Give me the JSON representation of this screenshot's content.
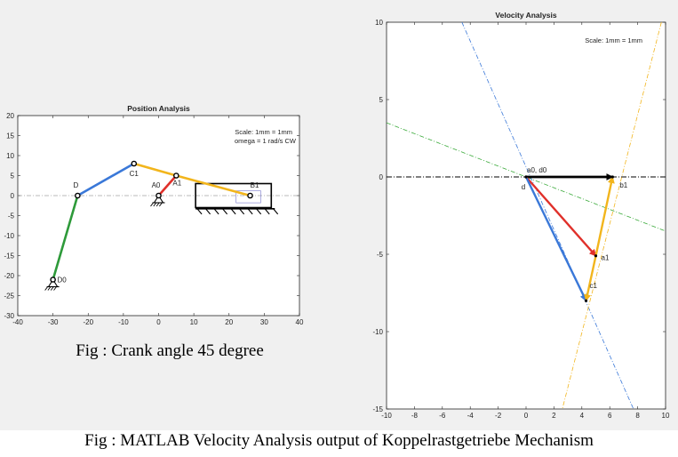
{
  "captions": {
    "left": "Fig : Crank angle 45 degree",
    "main": "Fig : MATLAB Velocity Analysis output of  Koppelrastgetriebe Mechanism"
  },
  "colors": {
    "blue": "#3a78d8",
    "green": "#2e9a3a",
    "yellow": "#f2b51c",
    "red": "#e0302a",
    "black": "#000000",
    "green_dashed": "#3aaa3a",
    "orange_dashed": "#f2b51c",
    "blue_dashed": "#3a78d8"
  },
  "chart_data": [
    {
      "type": "line",
      "title": "Position Analysis",
      "xlim": [
        -40,
        40
      ],
      "ylim": [
        -30,
        20
      ],
      "xticks": [
        -40,
        -30,
        -20,
        -10,
        0,
        10,
        20,
        30,
        40
      ],
      "yticks": [
        -30,
        -25,
        -20,
        -15,
        -10,
        -5,
        0,
        5,
        10,
        15,
        20
      ],
      "annotations": [
        "Scale: 1mm = 1mm",
        "omega = 1 rad/s CW"
      ],
      "points": [
        {
          "name": "D0",
          "x": -30,
          "y": -21
        },
        {
          "name": "D",
          "x": -23,
          "y": 0
        },
        {
          "name": "C1",
          "x": -7,
          "y": 8
        },
        {
          "name": "A0",
          "x": 0,
          "y": 0
        },
        {
          "name": "A1",
          "x": 5,
          "y": 5
        },
        {
          "name": "B1",
          "x": 26,
          "y": 0
        }
      ],
      "links": [
        {
          "from": "D0",
          "to": "D",
          "color": "green"
        },
        {
          "from": "D",
          "to": "C1",
          "color": "blue"
        },
        {
          "from": "C1",
          "to": "A1",
          "color": "yellow"
        },
        {
          "from": "A1",
          "to": "B1",
          "color": "yellow"
        },
        {
          "from": "A0",
          "to": "A1",
          "color": "red"
        }
      ],
      "reference_line_y": 0,
      "grid": false
    },
    {
      "type": "line",
      "title": "Velocity Analysis",
      "xlim": [
        -10,
        10
      ],
      "ylim": [
        -15,
        10
      ],
      "xticks": [
        -10,
        -8,
        -6,
        -4,
        -2,
        0,
        2,
        4,
        6,
        8,
        10
      ],
      "yticks": [
        -15,
        -10,
        -5,
        0,
        5,
        10
      ],
      "annotations": [
        "Scale: 1mm = 1mm"
      ],
      "points": [
        {
          "name": "a0, d0",
          "x": 0,
          "y": 0
        },
        {
          "name": "d",
          "x": 0,
          "y": 0
        },
        {
          "name": "b1",
          "x": 6.2,
          "y": 0
        },
        {
          "name": "a1",
          "x": 5.0,
          "y": -5.1
        },
        {
          "name": "c1",
          "x": 4.3,
          "y": -8.0
        }
      ],
      "vectors": [
        {
          "from": "a0, d0",
          "to": "b1",
          "color": "black"
        },
        {
          "from": "a0, d0",
          "to": "a1",
          "color": "red"
        },
        {
          "from": "a0, d0",
          "to": "c1",
          "color": "blue"
        },
        {
          "from": "a1",
          "to": "b1",
          "color": "yellow"
        },
        {
          "from": "a1",
          "to": "c1",
          "color": "yellow"
        }
      ],
      "construction_lines": [
        {
          "color": "black",
          "through": [
            [
              -10,
              0
            ],
            [
              10,
              0
            ]
          ]
        },
        {
          "color": "green_dashed",
          "through": [
            [
              -10,
              3.5
            ],
            [
              10,
              -3.5
            ]
          ]
        },
        {
          "color": "blue_dashed",
          "through": [
            [
              -4.6,
              10
            ],
            [
              7.7,
              -15
            ]
          ]
        },
        {
          "color": "orange_dashed",
          "through": [
            [
              9.7,
              10
            ],
            [
              2.6,
              -15
            ]
          ]
        }
      ],
      "grid": false
    }
  ]
}
